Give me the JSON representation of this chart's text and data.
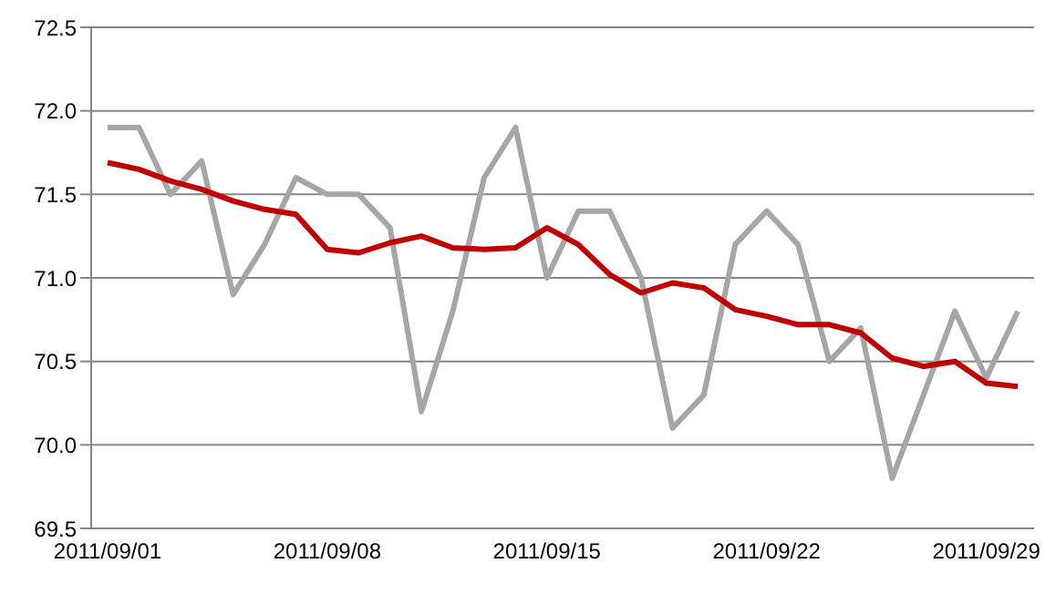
{
  "chart_data": {
    "type": "line",
    "categories": [
      "2011/09/01",
      null,
      null,
      null,
      null,
      null,
      null,
      "2011/09/08",
      null,
      null,
      null,
      null,
      null,
      null,
      "2011/09/15",
      null,
      null,
      null,
      null,
      null,
      null,
      "2011/09/22",
      null,
      null,
      null,
      null,
      null,
      null,
      "2011/09/29",
      null
    ],
    "series": [
      {
        "color": "#a6a6a6",
        "values": [
          71.9,
          71.9,
          71.5,
          71.7,
          70.9,
          71.2,
          71.6,
          71.5,
          71.5,
          71.3,
          70.2,
          70.8,
          71.6,
          71.9,
          71.0,
          71.4,
          71.4,
          71.0,
          70.1,
          70.3,
          71.2,
          71.4,
          71.2,
          70.5,
          70.7,
          69.8,
          70.3,
          70.8,
          70.4,
          70.8
        ]
      },
      {
        "color": "#c00000",
        "values": [
          71.69,
          71.65,
          71.58,
          71.53,
          71.46,
          71.41,
          71.38,
          71.17,
          71.15,
          71.21,
          71.25,
          71.18,
          71.17,
          71.18,
          71.3,
          71.2,
          71.02,
          70.91,
          70.97,
          70.94,
          70.81,
          70.77,
          70.72,
          70.72,
          70.67,
          70.52,
          70.47,
          70.5,
          70.37,
          70.35
        ]
      }
    ],
    "ylim": [
      69.5,
      72.5
    ],
    "yticks": [
      {
        "value": 69.5,
        "label": "69.5"
      },
      {
        "value": 70,
        "label": "70.0"
      },
      {
        "value": 70.5,
        "label": "70.5"
      },
      {
        "value": 71,
        "label": "71.0"
      },
      {
        "value": 71.5,
        "label": "71.5"
      },
      {
        "value": 72,
        "label": "72.0"
      },
      {
        "value": 72.5,
        "label": "72.5"
      }
    ],
    "grid": "y",
    "marker": "none",
    "line_style": "solid"
  }
}
